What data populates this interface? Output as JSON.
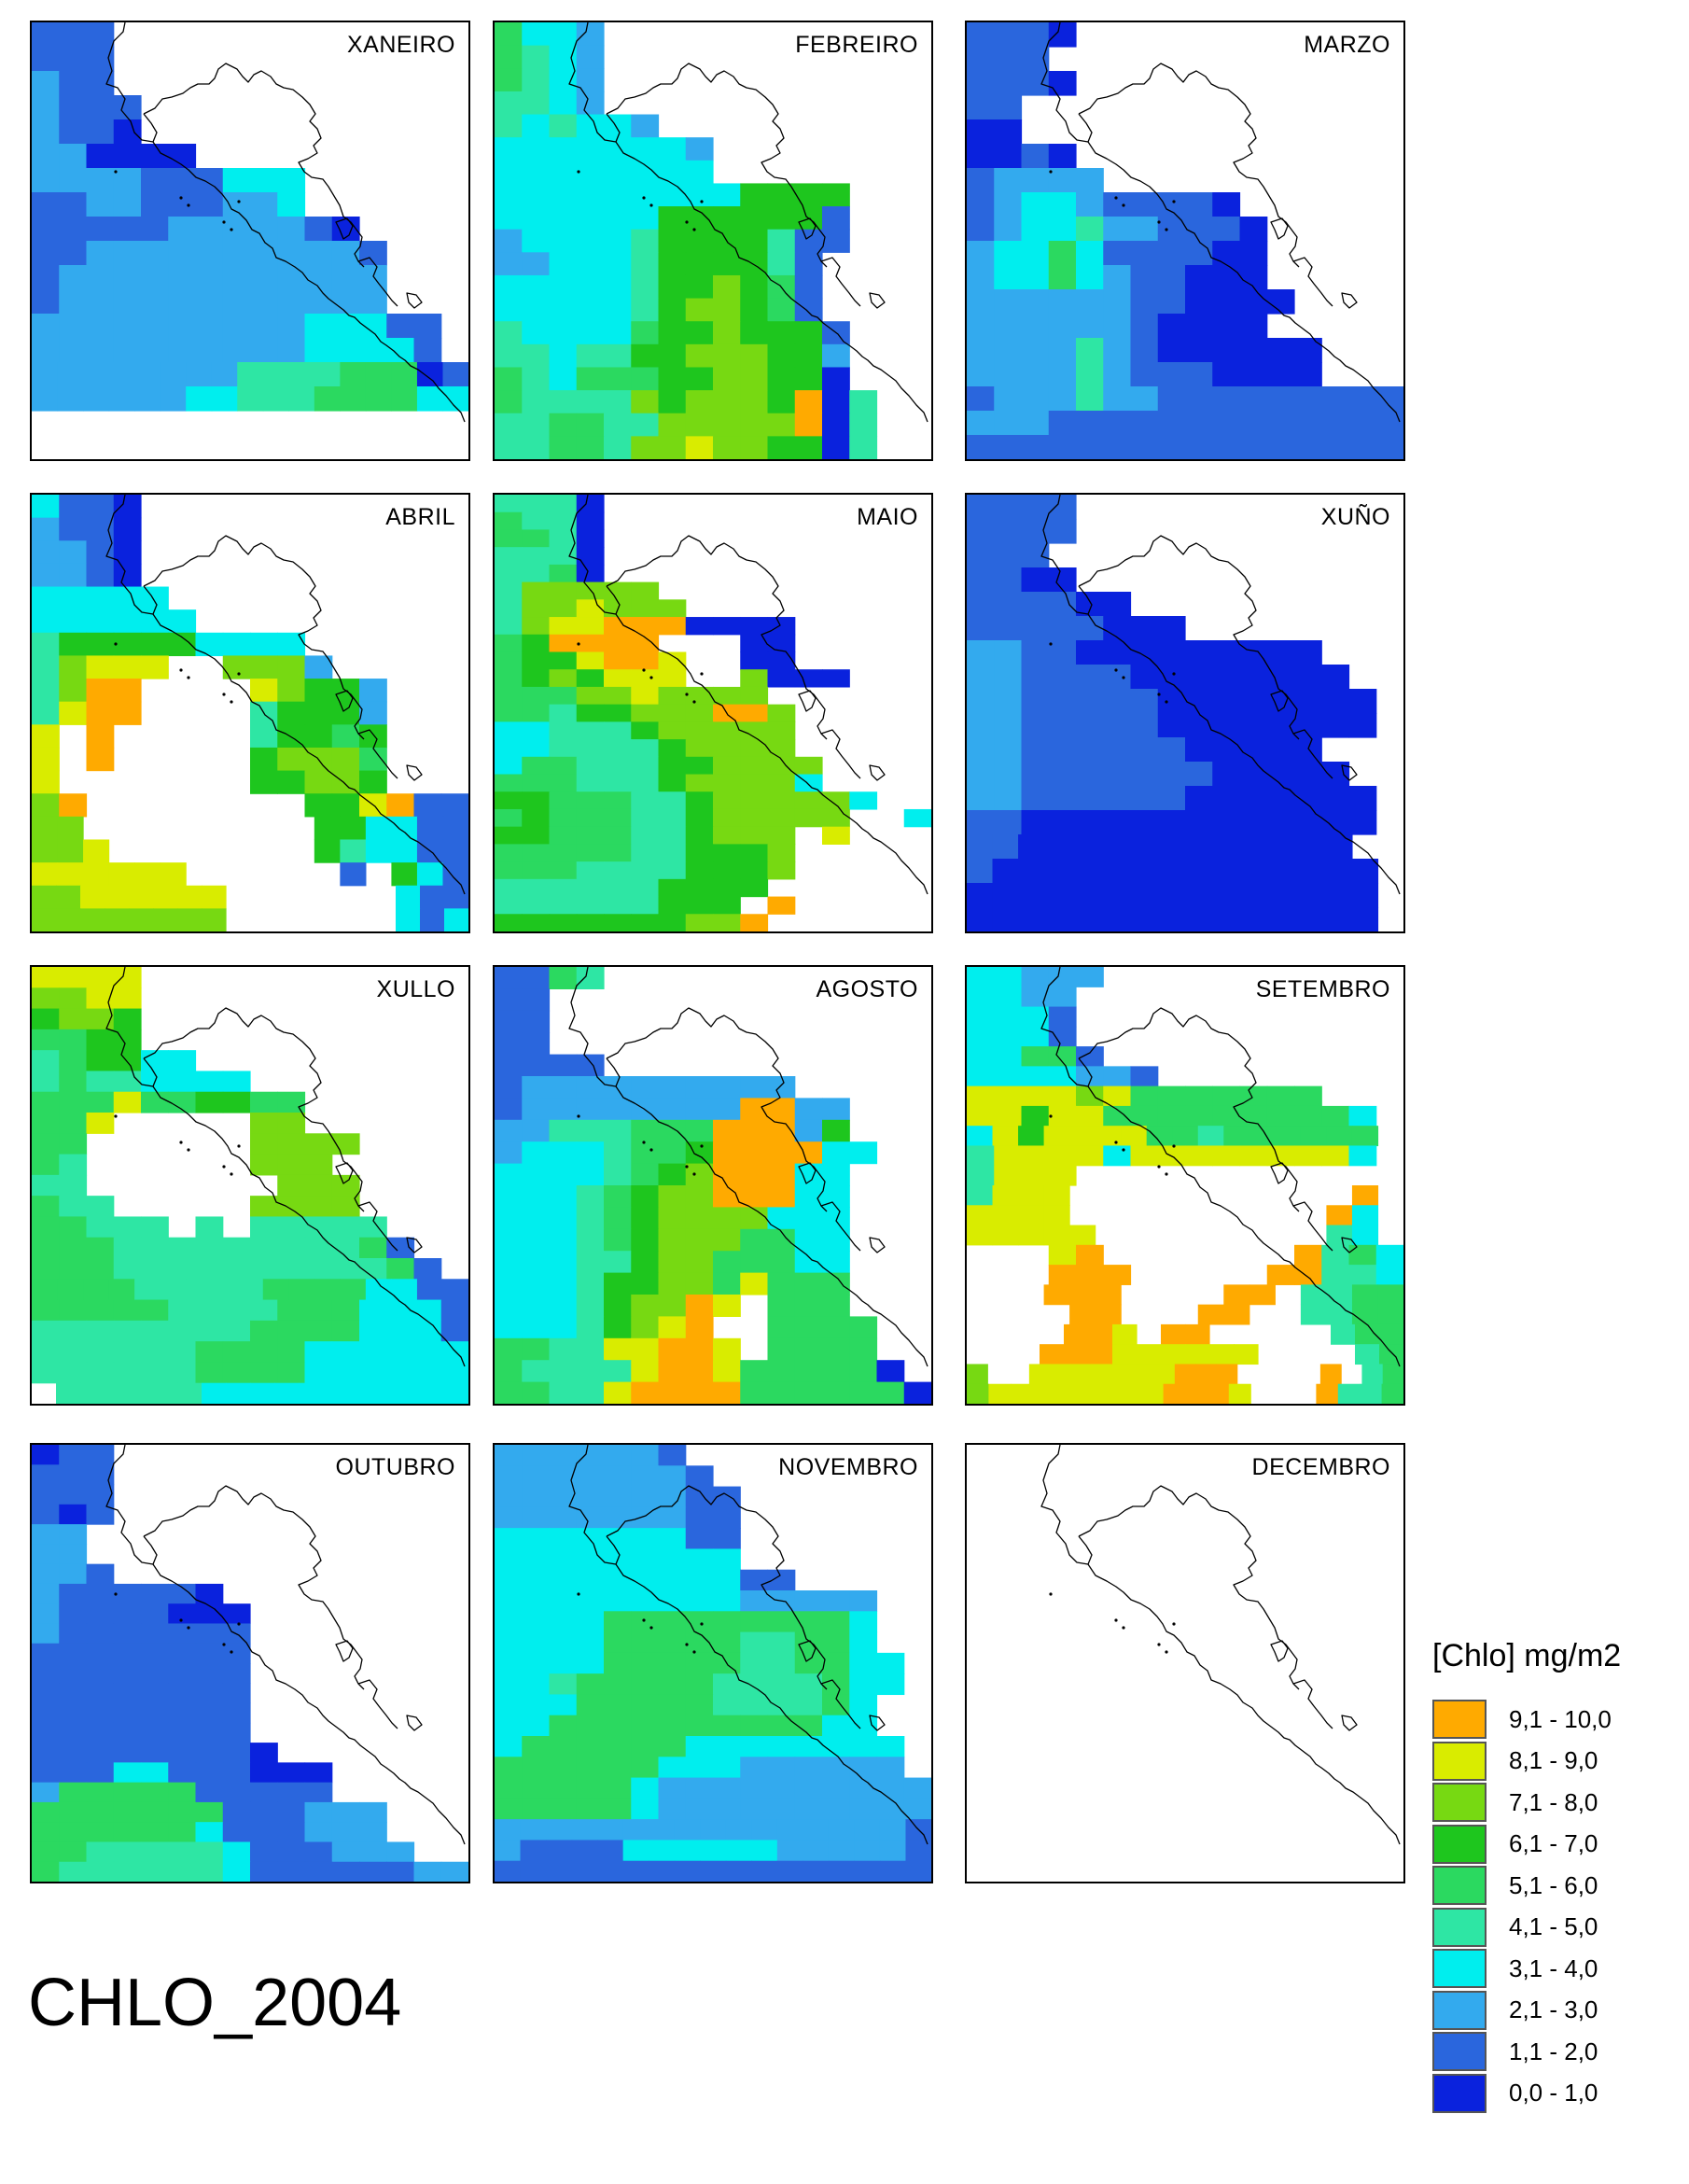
{
  "title": "CHLO_2004",
  "legend": {
    "title": "[Chlo] mg/m2",
    "classes": [
      {
        "label": "9,1 - 10,0",
        "color": "#ffaa00"
      },
      {
        "label": "8,1 - 9,0",
        "color": "#d9ec00"
      },
      {
        "label": "7,1 - 8,0",
        "color": "#77d912"
      },
      {
        "label": "6,1 - 7,0",
        "color": "#1ec61e"
      },
      {
        "label": "5,1 - 6,0",
        "color": "#2bd960"
      },
      {
        "label": "4,1 - 5,0",
        "color": "#2ee6a4"
      },
      {
        "label": "3,1 - 4,0",
        "color": "#00eeee"
      },
      {
        "label": "2,1 - 3,0",
        "color": "#33aaee"
      },
      {
        "label": "1,1 - 2,0",
        "color": "#2a66dd"
      },
      {
        "label": "0,0 - 1,0",
        "color": "#0a22dd"
      }
    ]
  },
  "months": [
    {
      "name": "XANEIRO",
      "grid": [
        "888.............",
        "888.............",
        "788.............",
        "7888............",
        "7889............",
        "779999..........",
        "7777888666......",
        "8877888776......",
        "888887777789....",
        "8877777777778...",
        "8777777777777...",
        "8777777777777...",
        "777777777766688.",
        "777777777766668.",
        "77777777555544498",
        "77777766555444466"
      ]
    },
    {
      "name": "FEBREIRO",
      "grid": [
        "4667............",
        "4567............",
        "4567............",
        "5567............",
        "565667..........",
        "66666667........",
        "66666666........",
        "6666666663333...",
        "6666663333338...",
        "7666653333588...",
        "776665333358....",
        "666665332348....",
        "666665322348....",
        "5666643323338...",
        "5565533222337...",
        "4564443322339...",
        "45555232223095..",
        "55445522222095..",
        "55445221223395.."
      ]
    },
    {
      "name": "MARZO",
      "grid": [
        "8889............",
        "888.............",
        "8889............",
        "88..............",
        "99..............",
        "9989............",
        "87777...........",
        "8766788889......",
        "87665778889.....",
        "76646888899.....",
        "76646788999.....",
        "777777889999....",
        "77777789999.....",
        "7777578999999...",
        "7777578889999...",
        "8777577888888888",
        "7778888888888888",
        "8888888888888888"
      ]
    },
    {
      "name": "ABRIL",
      "grid": [
        "6889............",
        "7889............",
        "7789............",
        "7789............",
        "66666...........",
        "666666..........",
        "5333336666......",
        "52111..2227.....",
        "5200....12337...",
        "5100....53337...",
        "1.0.....53343...",
        "1.0.....32224...",
        "1.......33223...",
        "20........331088",
        "22.........336688",
        "221........356688",
        "111111......8.368",
        "22111111.......688",
        "22222222.......686"
      ]
    },
    {
      "name": "MAIO",
      "grid": [
        "5559............",
        "4559............",
        "4459............",
        "5559............",
        "5549............",
        "522222..........",
        "5221222.........",
        "52110009999.....",
        "430000...99.....",
        "4331001..99.....",
        "4323111..2999...",
        "4442212222......",
        "44533222002.....",
        "66555322222.....",
        "66555532222.....",
        "644555332222....",
        "444555322226....",
        "33444553222226..",
        "4344455322222..6",
        "33444553222.1...",
        "44444553332.....",
        "44455553332.....",
        "5555553333......",
        "555555333.0.....",
        "3333333220......"
      ]
    },
    {
      "name": "XUÑO",
      "grid": [
        "8888............",
        "8888............",
        "888.............",
        "8899............",
        "888899..........",
        "88888999........",
        "7788999999999...",
        "77888899999999..",
        "778888899999999.",
        "778888899999999.",
        "7788888899999...",
        "77888888899999..",
        "778888889999999.",
        "889999999999999.",
        "889999999999999..",
        "8999999999999999.",
        "9999999999999999.",
        "9999999999999999."
      ]
    },
    {
      "name": "XULLO",
      "grid": [
        "1111............",
        "2211............",
        "3223............",
        "4433............",
        "543366..........",
        "54556666........",
        "4441443344......",
        "441.....22......",
        "44......2222....",
        "45......222.....",
        "55.......222....",
        "455.....2222....",
        "44555.5.55555...",
        "44455555555548..",
        "444555555555548.",
        "44445555544446688",
        "4444455554446668",
        "5555555544446668",
        "5555554444666666",
        "5555554444666666",
        ".55555566666666666"
      ]
    },
    {
      "name": "AGOSTO",
      "grid": [
        "8845............",
        "88..............",
        "88..............",
        "88..............",
        "8888............",
        "87777777777.....",
        "8777777770077...",
        "7755544400073...",
        "76665443000066..",
        "6666543200066...",
        "6665432200066...",
        "6665432222666...",
        "6665432224466...",
        "6665532244466...",
        "6665332241444...",
        "666532201.444...",
        "66653210..4444..",
        "445511001.4444..",
        "455551001444449.",
        "4455100004444449"
      ]
    },
    {
      "name": "SETEMBRO",
      "grid": [
        "66777...........",
        "6677............",
        "6668............",
        "6668............",
        "66448...........",
        "6666778.........",
        "1111214444444...",
        "113114444444446.",
        "6131111445444444.",
        "511116111111116.",
        "5111............",
        "5111...........0.",
        "1111..........06.",
        "11111.........56.",
        "...10.......0546",
        "...000.....00556",
        "...000....00.5544",
        "....00...00..5544",
        "....001.00.....544",
        "...000111111....54",
        "2..1111111000....0.54",
        "2111111110001...0554"
      ]
    },
    {
      "name": "OUTUBRO",
      "grid": [
        "988.............",
        "888.............",
        "888.............",
        "898.............",
        "77..............",
        "77..............",
        "778.............",
        "7888889.........",
        "78888999........",
        "78888888........",
        "88888888........",
        "88888888........",
        "88888888........",
        "88888888........",
        "88888888........",
        "888888889.......",
        "88866888999.....",
        "74444488888.....",
        "4444444888777...",
        "4444446888777...",
        "44555556888777..",
        "4555555688888877"
      ]
    },
    {
      "name": "NOVEMBRO",
      "grid": [
        "7777778.........",
        "77777778........",
        "777777788.......",
        "777777788.......",
        "666666688.......",
        "666666666.......",
        "66666666688.....",
        "66666666677777..",
        "66664444444446..",
        "66664444455446..",
        "666644444554466.",
        "665444445555466.",
        "66644444555546..",
        "66444444444466..",
        "644444466666666.",
        "444444666777777.",
        "4444467777777777",
        "4444467777777777",
        "77777777777777778",
        "78888666666777778",
        "88888888888888888"
      ]
    },
    {
      "name": "DECEMBRO",
      "grid": []
    }
  ]
}
